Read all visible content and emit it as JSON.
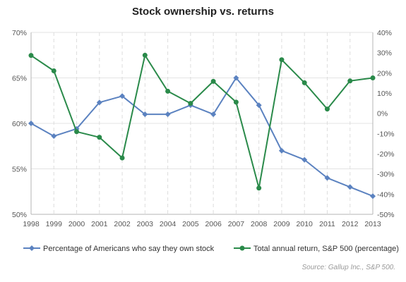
{
  "chart_data": {
    "type": "line",
    "title": "Stock ownership vs. returns",
    "source": "Source: Gallup Inc., S&P 500.",
    "x": [
      "1998",
      "1999",
      "2000",
      "2001",
      "2002",
      "2003",
      "2004",
      "2005",
      "2006",
      "2007",
      "2008",
      "2009",
      "2010",
      "2011",
      "2012",
      "2013"
    ],
    "y_left": {
      "ticks": [
        "50%",
        "55%",
        "60%",
        "65%",
        "70%"
      ],
      "min": 50,
      "max": 70
    },
    "y_right": {
      "ticks": [
        "-50%",
        "-40%",
        "-30%",
        "-20%",
        "-10%",
        "0%",
        "10%",
        "20%",
        "30%",
        "40%"
      ],
      "min": -50,
      "max": 40
    },
    "grid": true,
    "legend_position": "bottom",
    "series": [
      {
        "name": "Percentage of Americans who say they own stock",
        "axis": "left",
        "color": "#5b82c0",
        "marker": "diamond",
        "values": [
          60,
          58.6,
          59.4,
          62.3,
          63,
          61,
          61,
          62,
          61,
          65,
          62,
          57,
          56,
          54,
          53,
          52
        ]
      },
      {
        "name": "Total annual return, S&P 500 (percentage)",
        "axis": "right",
        "color": "#2a8a4a",
        "marker": "circle",
        "values": [
          28.6,
          21.0,
          -9.1,
          -11.9,
          -22.1,
          28.7,
          10.9,
          4.9,
          15.8,
          5.5,
          -37.0,
          26.5,
          15.1,
          2.1,
          16.0,
          17.5
        ]
      }
    ]
  }
}
